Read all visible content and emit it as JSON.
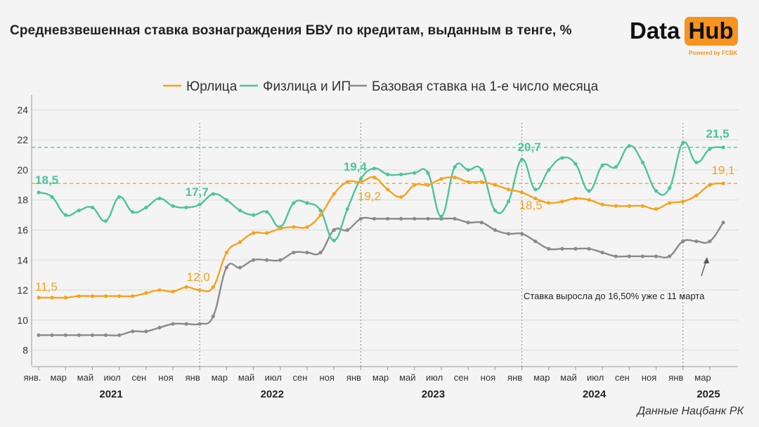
{
  "title": "Средневзвешенная ставка вознаграждения БВУ по кредитам, выданным в тенге, %",
  "logo": {
    "data": "Data",
    "hub": "Hub",
    "sub": "Powered by FCBK"
  },
  "source": "Данные Нацбанк РК",
  "colors": {
    "legal": "#f7a21b",
    "individual": "#4cc49c",
    "base": "#8a8a8a",
    "grid": "#d9d9d9"
  },
  "chart_data": {
    "type": "line",
    "title": "Средневзвешенная ставка вознаграждения БВУ по кредитам, выданным в тенге, %",
    "ylim": [
      7,
      25
    ],
    "yticks": [
      8,
      10,
      12,
      14,
      16,
      18,
      20,
      22,
      24
    ],
    "grid": "horizontal",
    "legend_position": "top",
    "month_tick_labels": [
      "янв.",
      "мар",
      "май",
      "июл",
      "сен",
      "ноя",
      "янв",
      "мар",
      "май",
      "июл",
      "сен",
      "ноя",
      "янв",
      "мар",
      "май",
      "июл",
      "сен",
      "ноя",
      "янв",
      "мар",
      "май",
      "июл",
      "сен",
      "ноя",
      "янв",
      "мар"
    ],
    "year_labels": [
      "2021",
      "2022",
      "2023",
      "2024",
      "2025"
    ],
    "reference_lines": [
      {
        "series": "Физлица и ИП",
        "value": 21.5
      },
      {
        "series": "Юрлица",
        "value": 19.1
      }
    ],
    "series": [
      {
        "name": "Юрлица",
        "values": [
          11.5,
          11.5,
          11.5,
          11.6,
          11.6,
          11.6,
          11.6,
          11.6,
          11.8,
          12.0,
          11.9,
          12.2,
          12.0,
          12.2,
          14.5,
          15.2,
          15.8,
          15.8,
          16.1,
          16.2,
          16.2,
          17.0,
          18.4,
          19.2,
          19.2,
          19.5,
          18.7,
          18.2,
          19.0,
          19.0,
          19.4,
          19.5,
          19.2,
          19.2,
          19.0,
          18.7,
          18.5,
          18.1,
          17.8,
          17.9,
          18.1,
          18.0,
          17.7,
          17.6,
          17.6,
          17.6,
          17.4,
          17.8,
          17.9,
          18.3,
          19.0,
          19.1
        ]
      },
      {
        "name": "Физлица и ИП",
        "values": [
          18.5,
          18.2,
          17.0,
          17.3,
          17.5,
          16.6,
          18.2,
          17.2,
          17.5,
          18.1,
          17.6,
          17.5,
          17.7,
          18.4,
          18.0,
          17.3,
          17.0,
          17.2,
          16.2,
          17.8,
          17.8,
          17.3,
          15.3,
          17.4,
          19.4,
          20.1,
          19.7,
          19.7,
          19.8,
          19.8,
          16.9,
          20.2,
          20.0,
          20.0,
          17.3,
          17.9,
          20.7,
          18.7,
          20.0,
          20.8,
          20.4,
          18.6,
          20.3,
          20.2,
          21.6,
          20.5,
          18.6,
          18.8,
          21.8,
          20.5,
          21.4,
          21.5
        ]
      },
      {
        "name": "Базовая ставка на 1-е число месяца",
        "values": [
          9.0,
          9.0,
          9.0,
          9.0,
          9.0,
          9.0,
          9.0,
          9.25,
          9.25,
          9.5,
          9.75,
          9.75,
          9.75,
          10.25,
          13.5,
          13.5,
          14.0,
          14.0,
          14.0,
          14.5,
          14.5,
          14.5,
          16.0,
          16.0,
          16.75,
          16.75,
          16.75,
          16.75,
          16.75,
          16.75,
          16.75,
          16.75,
          16.5,
          16.5,
          16.0,
          15.75,
          15.75,
          15.25,
          14.75,
          14.75,
          14.75,
          14.75,
          14.5,
          14.25,
          14.25,
          14.25,
          14.25,
          14.25,
          15.25,
          15.25,
          15.25,
          16.5
        ]
      }
    ],
    "annotations": [
      {
        "series": 0,
        "index": 0,
        "text": "11,5"
      },
      {
        "series": 0,
        "index": 12,
        "text": "12,0"
      },
      {
        "series": 0,
        "index": 24,
        "text": "19,2"
      },
      {
        "series": 0,
        "index": 36,
        "text": "18,5"
      },
      {
        "series": 0,
        "index": 51,
        "text": "19,1"
      },
      {
        "series": 1,
        "index": 0,
        "text": "18,5"
      },
      {
        "series": 1,
        "index": 12,
        "text": "17,7"
      },
      {
        "series": 1,
        "index": 24,
        "text": "19,4"
      },
      {
        "series": 1,
        "index": 36,
        "text": "20,7"
      },
      {
        "series": 1,
        "index": 51,
        "text": "21,5"
      }
    ],
    "note": "Ставка выросла до 16,50% уже с 11 марта"
  }
}
